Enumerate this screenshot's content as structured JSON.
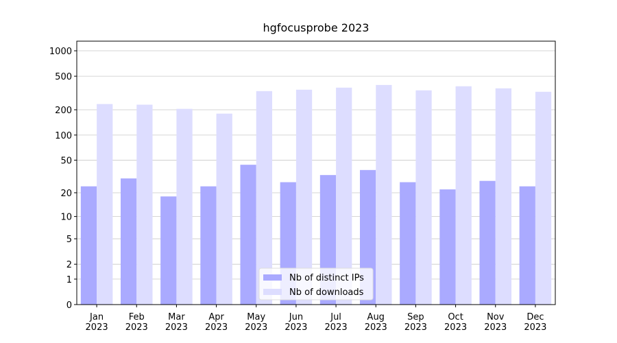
{
  "chart_data": {
    "type": "bar",
    "title": "hgfocusprobe 2023",
    "categories": [
      "Jan\n2023",
      "Feb\n2023",
      "Mar\n2023",
      "Apr\n2023",
      "May\n2023",
      "Jun\n2023",
      "Jul\n2023",
      "Aug\n2023",
      "Sep\n2023",
      "Oct\n2023",
      "Nov\n2023",
      "Dec\n2023"
    ],
    "series": [
      {
        "name": "Nb of distinct IPs",
        "color": "#aaaaff",
        "values": [
          24,
          30,
          18,
          24,
          44,
          27,
          33,
          38,
          27,
          22,
          28,
          24
        ]
      },
      {
        "name": "Nb of downloads",
        "color": "#ddddff",
        "values": [
          234,
          230,
          205,
          180,
          333,
          346,
          366,
          394,
          340,
          380,
          359,
          327
        ]
      }
    ],
    "yscale": "log1p",
    "ylim": [
      0,
      1300
    ],
    "yticks": [
      0,
      1,
      2,
      5,
      10,
      20,
      50,
      100,
      200,
      500,
      1000
    ],
    "grid": true,
    "legend": "lower center"
  }
}
